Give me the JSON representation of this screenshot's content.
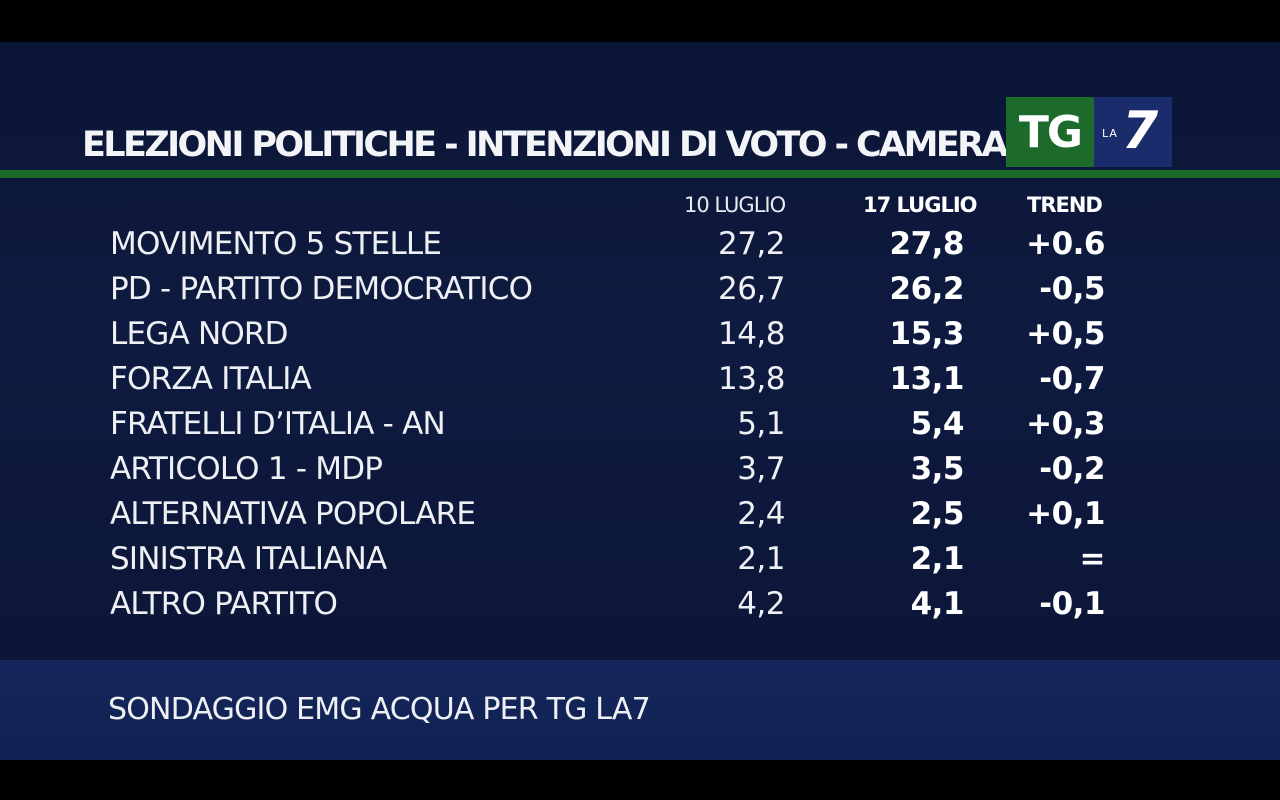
{
  "title": "ELEZIONI POLITICHE - INTENZIONI DI VOTO - CAMERA",
  "logo": {
    "tg": "TG",
    "la": "LA",
    "seven": "7"
  },
  "chart_data": {
    "type": "table",
    "columns": [
      "10 LUGLIO",
      "17 LUGLIO",
      "TREND"
    ],
    "rows": [
      {
        "party": "MOVIMENTO 5 STELLE",
        "jul10": "27,2",
        "jul17": "27,8",
        "trend": "+0.6"
      },
      {
        "party": "PD - PARTITO DEMOCRATICO",
        "jul10": "26,7",
        "jul17": "26,2",
        "trend": "-0,5"
      },
      {
        "party": "LEGA NORD",
        "jul10": "14,8",
        "jul17": "15,3",
        "trend": "+0,5"
      },
      {
        "party": "FORZA ITALIA",
        "jul10": "13,8",
        "jul17": "13,1",
        "trend": "-0,7"
      },
      {
        "party": "FRATELLI D’ITALIA - AN",
        "jul10": "5,1",
        "jul17": "5,4",
        "trend": "+0,3"
      },
      {
        "party": "ARTICOLO 1 - MDP",
        "jul10": "3,7",
        "jul17": "3,5",
        "trend": "-0,2"
      },
      {
        "party": "ALTERNATIVA POPOLARE",
        "jul10": "2,4",
        "jul17": "2,5",
        "trend": "+0,1"
      },
      {
        "party": "SINISTRA ITALIANA",
        "jul10": "2,1",
        "jul17": "2,1",
        "trend": "="
      },
      {
        "party": "ALTRO PARTITO",
        "jul10": "4,2",
        "jul17": "4,1",
        "trend": "-0,1"
      }
    ]
  },
  "source": "SONDAGGIO EMG ACQUA PER TG LA7"
}
